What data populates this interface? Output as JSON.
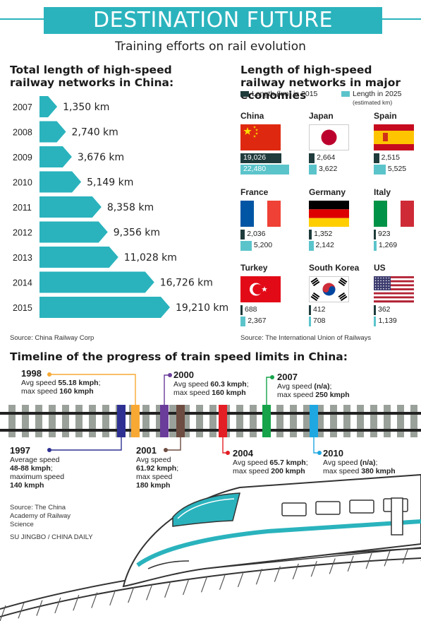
{
  "header": {
    "title": "DESTINATION FUTURE",
    "subtitle": "Training efforts on rail evolution"
  },
  "china_length": {
    "title": "Total length of high-speed railway networks in China:",
    "source": "Source: China Railway Corp"
  },
  "economies": {
    "title": "Length of high-speed railway networks in major economies",
    "legend_2015": "Length (km) in 2015",
    "legend_2025": "Length in 2025",
    "legend_2025_note": "(estimated km)",
    "source": "Source: The International Union of Railways"
  },
  "timeline": {
    "title": "Timeline of the progress of train speed limits in China:",
    "source": "Source: The China Academy of Railway Science",
    "credit": "SU JINGBO / CHINA DAILY",
    "events": [
      {
        "year": "1997",
        "color": "#2e3192",
        "side": "below",
        "lines": [
          "Average speed",
          "<b>48-88 kmph</b>;",
          "maximum speed",
          "<b>140 kmph</b>"
        ]
      },
      {
        "year": "1998",
        "color": "#f7a934",
        "side": "above",
        "lines": [
          "Avg speed <b>55.18 kmph</b>;",
          "max speed <b>160 kmph</b>"
        ]
      },
      {
        "year": "2000",
        "color": "#6a3d9a",
        "side": "above",
        "lines": [
          "Avg speed <b>60.3 kmph</b>;",
          "max speed <b>160 kmph</b>"
        ]
      },
      {
        "year": "2001",
        "color": "#6d4c41",
        "side": "below",
        "lines": [
          "Avg speed",
          "<b>61.92 kmph</b>;",
          "max speed",
          "<b>180 kmph</b>"
        ]
      },
      {
        "year": "2004",
        "color": "#e31e24",
        "side": "below",
        "lines": [
          "Avg speed <b>65.7 kmph</b>;",
          "max speed <b>200 kmph</b>"
        ]
      },
      {
        "year": "2007",
        "color": "#16a34a",
        "side": "above",
        "lines": [
          "Avg speed <b>(n/a)</b>;",
          "max speed <b>250 kmph</b>"
        ]
      },
      {
        "year": "2010",
        "color": "#1ea7e0",
        "side": "below",
        "lines": [
          "Avg speed <b>(n/a)</b>;",
          "max speed <b>380 kmph</b>"
        ]
      }
    ]
  },
  "colors": {
    "teal": "#2ab3bd",
    "dark": "#1f3b3c",
    "light": "#5bc4cb"
  },
  "chart_data": [
    {
      "type": "bar",
      "title": "Total length of high-speed railway networks in China:",
      "categories": [
        "2007",
        "2008",
        "2009",
        "2010",
        "2011",
        "2012",
        "2013",
        "2014",
        "2015"
      ],
      "values": [
        1350,
        2740,
        3676,
        5149,
        8358,
        9356,
        11028,
        16726,
        19210
      ],
      "labels": [
        "1,350 km",
        "2,740 km",
        "3,676 km",
        "5,149 km",
        "8,358 km",
        "9,356 km",
        "11,028 km",
        "16,726 km",
        "19,210 km"
      ],
      "orientation": "horizontal",
      "unit": "km"
    },
    {
      "type": "bar",
      "title": "Length of high-speed railway networks in major economies",
      "categories": [
        "China",
        "Japan",
        "Spain",
        "France",
        "Germany",
        "Italy",
        "Turkey",
        "South Korea",
        "US"
      ],
      "series": [
        {
          "name": "Length (km) in 2015",
          "values": [
            19026,
            2664,
            2515,
            2036,
            1352,
            923,
            688,
            412,
            362
          ]
        },
        {
          "name": "Length in 2025",
          "values": [
            22480,
            3622,
            5525,
            5200,
            2142,
            1269,
            2367,
            708,
            1139
          ]
        }
      ],
      "labels_2015": [
        "19,026",
        "2,664",
        "2,515",
        "2,036",
        "1,352",
        "923",
        "688",
        "412",
        "362"
      ],
      "labels_2025": [
        "22,480",
        "3,622",
        "5,525",
        "5,200",
        "2,142",
        "1,269",
        "2,367",
        "708",
        "1,139"
      ],
      "orientation": "horizontal"
    }
  ]
}
